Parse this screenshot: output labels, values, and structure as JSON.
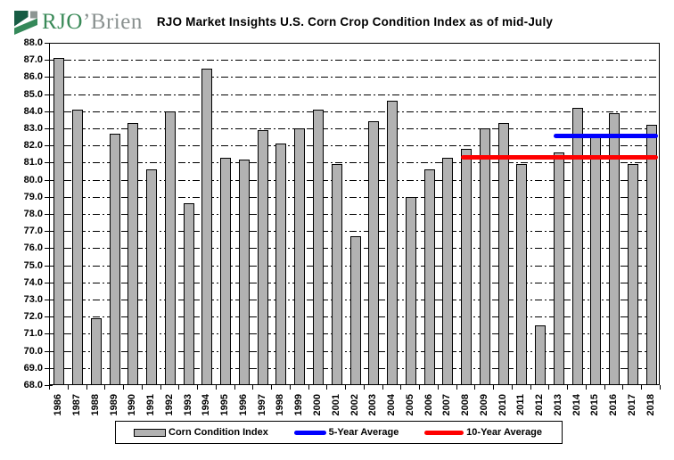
{
  "logo": {
    "brand_primary": "RJO",
    "brand_secondary": "’Brien",
    "primary_color": "#3a8a58",
    "secondary_color": "#8a9190",
    "icon_dark_green": "#175c44",
    "icon_mid_green": "#35895a",
    "icon_gray": "#8d9693"
  },
  "chart_data": {
    "type": "bar",
    "title": "RJO Market Insights U.S. Corn Crop Condition Index as of mid-July",
    "categories": [
      "1986",
      "1987",
      "1988",
      "1989",
      "1990",
      "1991",
      "1992",
      "1993",
      "1994",
      "1995",
      "1996",
      "1997",
      "1998",
      "1999",
      "2000",
      "2001",
      "2002",
      "2003",
      "2004",
      "2005",
      "2006",
      "2007",
      "2008",
      "2009",
      "2010",
      "2011",
      "2012",
      "2013",
      "2014",
      "2015",
      "2016",
      "2017",
      "2018"
    ],
    "values": [
      87.1,
      84.1,
      71.9,
      82.7,
      83.3,
      80.6,
      84.0,
      78.6,
      86.5,
      81.3,
      81.2,
      82.9,
      82.1,
      83.0,
      84.1,
      80.9,
      76.7,
      83.4,
      84.6,
      79.0,
      80.6,
      81.3,
      81.8,
      83.0,
      83.3,
      80.9,
      71.5,
      81.6,
      84.2,
      82.5,
      83.9,
      80.9,
      83.2
    ],
    "series_label": "Corn Condition Index",
    "ylim": [
      68,
      88
    ],
    "ytick_step": 1,
    "y_ticks": [
      "88.0",
      "87.0",
      "86.0",
      "85.0",
      "84.0",
      "83.0",
      "82.0",
      "81.0",
      "80.0",
      "79.0",
      "78.0",
      "77.0",
      "76.0",
      "75.0",
      "74.0",
      "73.0",
      "72.0",
      "71.0",
      "70.0",
      "69.0",
      "68.0"
    ],
    "xlabel": "",
    "ylabel": "",
    "grid": "dash-dot horizontal, every 1.0",
    "bar_color": "#b2b2b2",
    "bar_border_color": "#000000",
    "legend_position": "bottom",
    "overlays": [
      {
        "name": "5-Year Average",
        "color": "#0000ff",
        "value": 82.6,
        "start_category": "2013",
        "end_category": "2018"
      },
      {
        "name": "10-Year Average",
        "color": "#ff0000",
        "value": 81.35,
        "start_category": "2008",
        "end_category": "2018"
      }
    ]
  },
  "legend": {
    "items": [
      {
        "label": "Corn Condition Index",
        "swatch": "bar",
        "color": "#b2b2b2"
      },
      {
        "label": "5-Year Average",
        "swatch": "line",
        "color": "#0000ff",
        "swatch_width": 36
      },
      {
        "label": "10-Year Average",
        "swatch": "line",
        "color": "#ff0000",
        "swatch_width": 44
      }
    ]
  }
}
